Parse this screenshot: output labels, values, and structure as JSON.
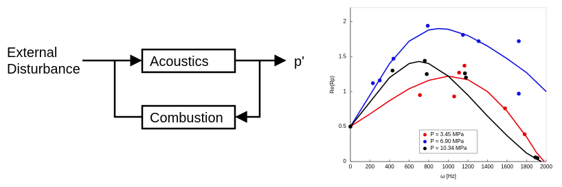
{
  "diagram": {
    "input_label": "External Disturbance",
    "blocks": [
      "Acoustics",
      "Combustion"
    ],
    "output_label": "p'"
  },
  "chart_data": {
    "type": "scatter-fit",
    "xlabel": "ω [Hz]",
    "ylabel": "Re(Rp)",
    "xlim": [
      0,
      2000
    ],
    "xticks": [
      0,
      200,
      400,
      600,
      800,
      1000,
      1200,
      1400,
      1600,
      1800,
      2000
    ],
    "ylim": [
      0,
      2.2
    ],
    "yticks": [
      0,
      0.5,
      1,
      1.5,
      2
    ],
    "legend": "lower center",
    "series": [
      {
        "name": "P = 3.45 MPa",
        "color": "#e8000b",
        "x": [
          0,
          710,
          1060,
          1110,
          1165,
          1580,
          1780
        ],
        "values": [
          0.5,
          0.95,
          0.93,
          1.27,
          1.37,
          0.76,
          0.39
        ],
        "fit_x": [
          0,
          200,
          400,
          600,
          800,
          1000,
          1200,
          1400,
          1600,
          1800,
          1900,
          1980
        ],
        "fit_values": [
          0.5,
          0.68,
          0.87,
          1.04,
          1.16,
          1.22,
          1.17,
          1.0,
          0.72,
          0.35,
          0.13,
          0
        ]
      },
      {
        "name": "P = 6.90 MPa",
        "color": "#1010e0",
        "x": [
          230,
          300,
          440,
          790,
          1150,
          1310,
          1720,
          1720
        ],
        "values": [
          1.12,
          1.16,
          1.47,
          1.94,
          1.81,
          1.72,
          1.72,
          0.97
        ],
        "fit_x": [
          0,
          200,
          400,
          600,
          800,
          900,
          1000,
          1200,
          1400,
          1600,
          1800,
          2000
        ],
        "fit_values": [
          0.5,
          0.95,
          1.4,
          1.72,
          1.88,
          1.9,
          1.89,
          1.8,
          1.65,
          1.47,
          1.27,
          1.0
        ]
      },
      {
        "name": "P = 10.34 MPa",
        "color": "#000000",
        "x": [
          0,
          430,
          760,
          780,
          1170,
          1180,
          1890,
          1910
        ],
        "values": [
          0.5,
          1.3,
          1.44,
          1.25,
          1.26,
          1.2,
          0.06,
          0.05
        ],
        "fit_x": [
          0,
          200,
          400,
          600,
          700,
          800,
          1000,
          1200,
          1400,
          1600,
          1800,
          1950
        ],
        "fit_values": [
          0.5,
          0.85,
          1.2,
          1.4,
          1.43,
          1.4,
          1.22,
          0.95,
          0.65,
          0.37,
          0.12,
          0
        ]
      }
    ]
  }
}
